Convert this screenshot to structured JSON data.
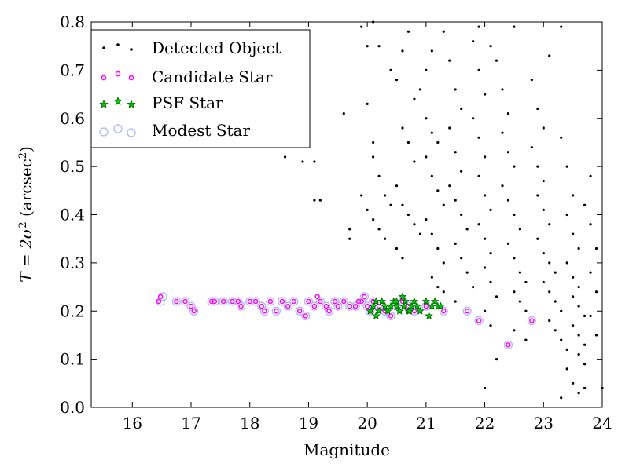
{
  "chart_data": {
    "type": "scatter",
    "xlabel": "Magnitude",
    "ylabel_parts": {
      "main": "T = 2σ",
      "sup1": "2",
      "paren": " (arcsec",
      "sup2": "2",
      "close": ")"
    },
    "xlim": [
      15.3,
      24.0
    ],
    "ylim": [
      0.0,
      0.8
    ],
    "x_ticks": [
      16,
      17,
      18,
      19,
      20,
      21,
      22,
      23,
      24
    ],
    "y_ticks": [
      0.0,
      0.1,
      0.2,
      0.3,
      0.4,
      0.5,
      0.6,
      0.7,
      0.8
    ],
    "x_tick_labels": [
      "16",
      "17",
      "18",
      "19",
      "20",
      "21",
      "22",
      "23",
      "24"
    ],
    "y_tick_labels": [
      "0.0",
      "0.1",
      "0.2",
      "0.3",
      "0.4",
      "0.5",
      "0.6",
      "0.7",
      "0.8"
    ],
    "grid": false,
    "legend_position": "top-left",
    "colors": {
      "detected": "#000000",
      "candidate_fill": "#ffffff",
      "candidate_edge": "#ff00ff",
      "psf_fill": "#00cc00",
      "psf_edge": "#006400",
      "modest_edge": "#b0b0ff"
    },
    "series": [
      {
        "name": "Detected Object",
        "marker": "dot",
        "points": [
          [
            17.2,
            0.6
          ],
          [
            17.3,
            0.6
          ],
          [
            18.6,
            0.52
          ],
          [
            18.9,
            0.51
          ],
          [
            19.1,
            0.51
          ],
          [
            19.1,
            0.43
          ],
          [
            19.2,
            0.43
          ],
          [
            19.6,
            0.61
          ],
          [
            19.7,
            0.37
          ],
          [
            19.7,
            0.35
          ],
          [
            19.9,
            0.44
          ],
          [
            19.9,
            0.79
          ],
          [
            20.0,
            0.75
          ],
          [
            20.1,
            0.8
          ],
          [
            20.2,
            0.75
          ],
          [
            20.0,
            0.63
          ],
          [
            20.1,
            0.55
          ],
          [
            20.1,
            0.52
          ],
          [
            20.2,
            0.48
          ],
          [
            20.3,
            0.44
          ],
          [
            20.4,
            0.42
          ],
          [
            20.0,
            0.41
          ],
          [
            20.1,
            0.39
          ],
          [
            20.2,
            0.37
          ],
          [
            20.3,
            0.35
          ],
          [
            20.4,
            0.7
          ],
          [
            20.5,
            0.68
          ],
          [
            20.6,
            0.74
          ],
          [
            20.7,
            0.78
          ],
          [
            20.8,
            0.64
          ],
          [
            20.6,
            0.58
          ],
          [
            20.7,
            0.55
          ],
          [
            20.8,
            0.51
          ],
          [
            20.5,
            0.46
          ],
          [
            20.6,
            0.42
          ],
          [
            20.7,
            0.4
          ],
          [
            20.8,
            0.38
          ],
          [
            20.9,
            0.36
          ],
          [
            20.5,
            0.33
          ],
          [
            20.6,
            0.31
          ],
          [
            20.9,
            0.66
          ],
          [
            21.0,
            0.7
          ],
          [
            21.1,
            0.74
          ],
          [
            21.0,
            0.6
          ],
          [
            21.1,
            0.57
          ],
          [
            21.2,
            0.55
          ],
          [
            21.0,
            0.52
          ],
          [
            21.1,
            0.48
          ],
          [
            21.2,
            0.45
          ],
          [
            21.3,
            0.42
          ],
          [
            21.0,
            0.39
          ],
          [
            21.1,
            0.36
          ],
          [
            21.2,
            0.33
          ],
          [
            21.3,
            0.3
          ],
          [
            21.1,
            0.27
          ],
          [
            21.2,
            0.25
          ],
          [
            21.3,
            0.78
          ],
          [
            21.4,
            0.72
          ],
          [
            21.5,
            0.66
          ],
          [
            21.6,
            0.62
          ],
          [
            21.4,
            0.58
          ],
          [
            21.5,
            0.53
          ],
          [
            21.6,
            0.49
          ],
          [
            21.4,
            0.46
          ],
          [
            21.5,
            0.43
          ],
          [
            21.6,
            0.4
          ],
          [
            21.7,
            0.37
          ],
          [
            21.5,
            0.34
          ],
          [
            21.6,
            0.31
          ],
          [
            21.7,
            0.28
          ],
          [
            21.8,
            0.25
          ],
          [
            21.5,
            0.22
          ],
          [
            21.7,
            0.2
          ],
          [
            21.8,
            0.76
          ],
          [
            21.9,
            0.7
          ],
          [
            22.0,
            0.65
          ],
          [
            21.8,
            0.6
          ],
          [
            21.9,
            0.56
          ],
          [
            22.0,
            0.52
          ],
          [
            21.9,
            0.48
          ],
          [
            22.0,
            0.44
          ],
          [
            22.1,
            0.41
          ],
          [
            21.9,
            0.38
          ],
          [
            22.0,
            0.35
          ],
          [
            22.1,
            0.32
          ],
          [
            22.0,
            0.29
          ],
          [
            22.1,
            0.26
          ],
          [
            22.2,
            0.23
          ],
          [
            22.0,
            0.2
          ],
          [
            22.1,
            0.17
          ],
          [
            22.2,
            0.72
          ],
          [
            22.3,
            0.66
          ],
          [
            22.4,
            0.61
          ],
          [
            22.3,
            0.57
          ],
          [
            22.4,
            0.53
          ],
          [
            22.5,
            0.5
          ],
          [
            22.3,
            0.46
          ],
          [
            22.4,
            0.43
          ],
          [
            22.5,
            0.4
          ],
          [
            22.6,
            0.37
          ],
          [
            22.4,
            0.34
          ],
          [
            22.5,
            0.31
          ],
          [
            22.6,
            0.28
          ],
          [
            22.7,
            0.26
          ],
          [
            22.5,
            0.24
          ],
          [
            22.6,
            0.22
          ],
          [
            22.7,
            0.2
          ],
          [
            22.8,
            0.18
          ],
          [
            22.5,
            0.16
          ],
          [
            22.7,
            0.14
          ],
          [
            22.8,
            0.68
          ],
          [
            22.9,
            0.62
          ],
          [
            23.0,
            0.58
          ],
          [
            22.8,
            0.54
          ],
          [
            22.9,
            0.5
          ],
          [
            23.0,
            0.47
          ],
          [
            22.9,
            0.44
          ],
          [
            23.0,
            0.41
          ],
          [
            23.1,
            0.38
          ],
          [
            22.9,
            0.35
          ],
          [
            23.0,
            0.32
          ],
          [
            23.1,
            0.3
          ],
          [
            23.2,
            0.28
          ],
          [
            23.0,
            0.26
          ],
          [
            23.1,
            0.24
          ],
          [
            23.2,
            0.22
          ],
          [
            23.3,
            0.2
          ],
          [
            23.1,
            0.18
          ],
          [
            23.2,
            0.16
          ],
          [
            23.3,
            0.14
          ],
          [
            23.4,
            0.12
          ],
          [
            23.3,
            0.56
          ],
          [
            23.4,
            0.5
          ],
          [
            23.5,
            0.44
          ],
          [
            23.4,
            0.4
          ],
          [
            23.5,
            0.36
          ],
          [
            23.6,
            0.33
          ],
          [
            23.4,
            0.3
          ],
          [
            23.5,
            0.27
          ],
          [
            23.6,
            0.25
          ],
          [
            23.5,
            0.23
          ],
          [
            23.6,
            0.21
          ],
          [
            23.7,
            0.19
          ],
          [
            23.5,
            0.17
          ],
          [
            23.6,
            0.15
          ],
          [
            23.7,
            0.13
          ],
          [
            23.6,
            0.11
          ],
          [
            23.7,
            0.09
          ],
          [
            23.8,
            0.48
          ],
          [
            23.7,
            0.42
          ],
          [
            23.8,
            0.38
          ],
          [
            23.9,
            0.33
          ],
          [
            23.8,
            0.28
          ],
          [
            23.9,
            0.24
          ],
          [
            23.8,
            0.19
          ],
          [
            23.9,
            0.15
          ],
          [
            23.4,
            0.08
          ],
          [
            23.5,
            0.05
          ],
          [
            23.6,
            0.03
          ],
          [
            23.3,
            0.02
          ],
          [
            23.7,
            0.04
          ],
          [
            24.0,
            0.04
          ],
          [
            22.0,
            0.04
          ],
          [
            22.2,
            0.1
          ],
          [
            23.1,
            0.73
          ],
          [
            23.3,
            0.79
          ],
          [
            22.5,
            0.79
          ],
          [
            21.9,
            0.79
          ],
          [
            22.1,
            0.75
          ],
          [
            21.3,
            0.24
          ]
        ]
      },
      {
        "name": "Candidate Star",
        "marker": "small-circle",
        "points": [
          [
            16.45,
            0.22
          ],
          [
            16.48,
            0.23
          ],
          [
            16.75,
            0.22
          ],
          [
            16.9,
            0.22
          ],
          [
            17.0,
            0.21
          ],
          [
            17.05,
            0.2
          ],
          [
            17.35,
            0.22
          ],
          [
            17.4,
            0.22
          ],
          [
            17.55,
            0.22
          ],
          [
            17.7,
            0.22
          ],
          [
            17.8,
            0.22
          ],
          [
            17.85,
            0.21
          ],
          [
            18.0,
            0.22
          ],
          [
            18.1,
            0.22
          ],
          [
            18.2,
            0.21
          ],
          [
            18.25,
            0.2
          ],
          [
            18.35,
            0.22
          ],
          [
            18.45,
            0.2
          ],
          [
            18.55,
            0.22
          ],
          [
            18.65,
            0.21
          ],
          [
            18.75,
            0.22
          ],
          [
            18.85,
            0.2
          ],
          [
            18.95,
            0.19
          ],
          [
            19.0,
            0.22
          ],
          [
            19.1,
            0.21
          ],
          [
            19.2,
            0.22
          ],
          [
            19.3,
            0.21
          ],
          [
            19.35,
            0.2
          ],
          [
            19.45,
            0.22
          ],
          [
            19.5,
            0.21
          ],
          [
            19.6,
            0.22
          ],
          [
            19.7,
            0.21
          ],
          [
            19.8,
            0.21
          ],
          [
            19.9,
            0.22
          ],
          [
            19.95,
            0.23
          ],
          [
            20.0,
            0.21
          ],
          [
            20.05,
            0.2
          ],
          [
            20.1,
            0.22
          ],
          [
            20.2,
            0.21
          ],
          [
            20.3,
            0.2
          ],
          [
            20.4,
            0.19
          ],
          [
            20.5,
            0.21
          ],
          [
            20.6,
            0.22
          ],
          [
            20.7,
            0.21
          ],
          [
            20.8,
            0.2
          ],
          [
            21.0,
            0.21
          ],
          [
            21.3,
            0.2
          ],
          [
            21.7,
            0.2
          ],
          [
            21.9,
            0.18
          ],
          [
            22.4,
            0.13
          ],
          [
            22.8,
            0.18
          ],
          [
            19.85,
            0.22
          ],
          [
            19.15,
            0.23
          ]
        ]
      },
      {
        "name": "PSF Star",
        "marker": "star",
        "points": [
          [
            20.05,
            0.2
          ],
          [
            20.1,
            0.21
          ],
          [
            20.15,
            0.22
          ],
          [
            20.2,
            0.2
          ],
          [
            20.25,
            0.22
          ],
          [
            20.3,
            0.21
          ],
          [
            20.35,
            0.2
          ],
          [
            20.4,
            0.21
          ],
          [
            20.45,
            0.22
          ],
          [
            20.5,
            0.21
          ],
          [
            20.55,
            0.2
          ],
          [
            20.6,
            0.23
          ],
          [
            20.62,
            0.21
          ],
          [
            20.65,
            0.22
          ],
          [
            20.7,
            0.2
          ],
          [
            20.75,
            0.21
          ],
          [
            20.8,
            0.22
          ],
          [
            20.85,
            0.21
          ],
          [
            20.9,
            0.2
          ],
          [
            21.0,
            0.22
          ],
          [
            21.05,
            0.19
          ],
          [
            21.1,
            0.21
          ],
          [
            21.15,
            0.22
          ],
          [
            21.2,
            0.21
          ],
          [
            21.25,
            0.21
          ],
          [
            20.15,
            0.19
          ],
          [
            20.5,
            0.22
          ],
          [
            20.72,
            0.2
          ]
        ]
      },
      {
        "name": "Modest Star",
        "marker": "open-circle",
        "points": [
          [
            16.48,
            0.22
          ],
          [
            16.52,
            0.23
          ],
          [
            16.75,
            0.22
          ],
          [
            16.9,
            0.22
          ],
          [
            17.0,
            0.21
          ],
          [
            17.05,
            0.2
          ],
          [
            17.35,
            0.22
          ],
          [
            17.4,
            0.22
          ],
          [
            17.55,
            0.22
          ],
          [
            17.7,
            0.22
          ],
          [
            17.8,
            0.22
          ],
          [
            17.85,
            0.21
          ],
          [
            18.0,
            0.22
          ],
          [
            18.1,
            0.22
          ],
          [
            18.2,
            0.21
          ],
          [
            18.25,
            0.2
          ],
          [
            18.35,
            0.22
          ],
          [
            18.45,
            0.2
          ],
          [
            18.55,
            0.22
          ],
          [
            18.65,
            0.21
          ],
          [
            18.75,
            0.22
          ],
          [
            18.85,
            0.2
          ],
          [
            18.95,
            0.19
          ],
          [
            19.0,
            0.22
          ],
          [
            19.1,
            0.21
          ],
          [
            19.2,
            0.22
          ],
          [
            19.3,
            0.21
          ],
          [
            19.35,
            0.2
          ],
          [
            19.45,
            0.22
          ],
          [
            19.5,
            0.21
          ],
          [
            19.6,
            0.22
          ],
          [
            19.7,
            0.21
          ],
          [
            19.8,
            0.21
          ],
          [
            19.9,
            0.22
          ],
          [
            19.95,
            0.23
          ],
          [
            20.0,
            0.21
          ],
          [
            20.05,
            0.2
          ],
          [
            20.1,
            0.22
          ],
          [
            20.2,
            0.21
          ],
          [
            20.3,
            0.2
          ],
          [
            20.4,
            0.19
          ],
          [
            20.5,
            0.21
          ],
          [
            20.6,
            0.22
          ],
          [
            20.7,
            0.21
          ],
          [
            20.8,
            0.2
          ],
          [
            21.0,
            0.21
          ],
          [
            21.3,
            0.2
          ],
          [
            21.7,
            0.2
          ],
          [
            21.9,
            0.18
          ],
          [
            22.4,
            0.13
          ],
          [
            22.8,
            0.18
          ]
        ]
      }
    ]
  }
}
